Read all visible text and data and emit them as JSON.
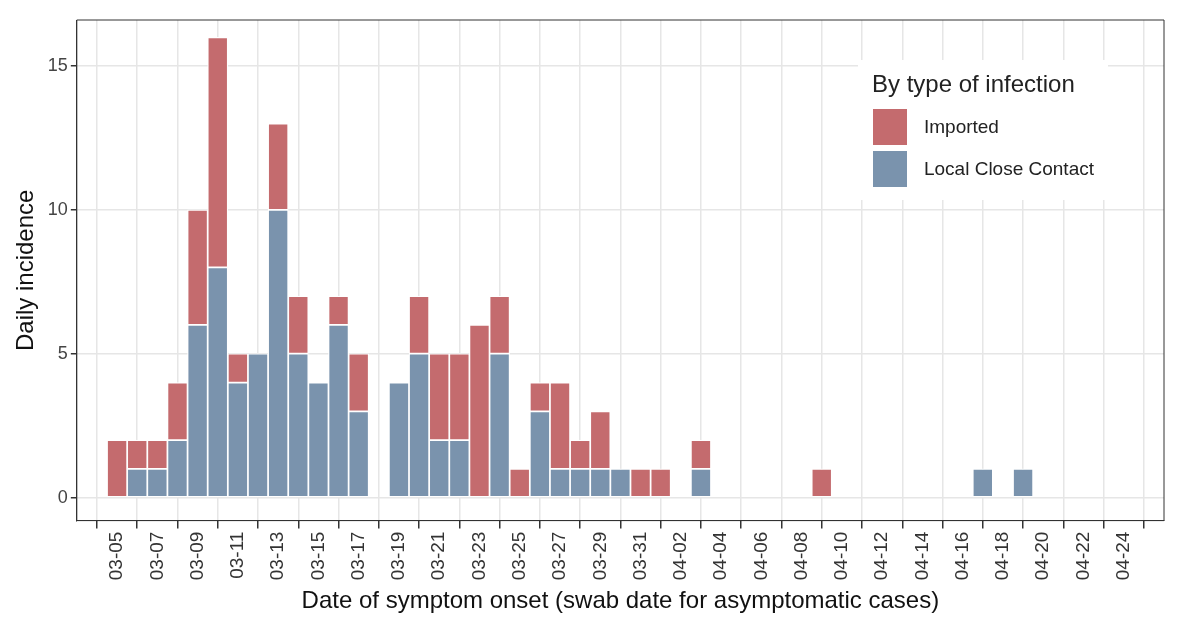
{
  "chart_data": {
    "type": "bar",
    "stacked": true,
    "xlabel": "Date of symptom onset (swab date for asymptomatic cases)",
    "ylabel": "Daily incidence",
    "legend_title": "By type of infection",
    "legend": "top right",
    "grid": true,
    "x": [
      "--03-05",
      "--03-06",
      "--03-07",
      "--03-08",
      "--03-09",
      "--03-10",
      "--03-11",
      "--03-12",
      "--03-13",
      "--03-14",
      "--03-15",
      "--03-16",
      "--03-17",
      "--03-19",
      "--03-20",
      "--03-21",
      "--03-22",
      "--03-23",
      "--03-24",
      "--03-25",
      "--03-26",
      "--03-27",
      "--03-28",
      "--03-29",
      "--03-30",
      "--03-31",
      "--04-01",
      "--04-03",
      "--04-09",
      "--04-17",
      "--04-19"
    ],
    "series": [
      {
        "name": "Local Close Contact",
        "color": "#7a93ad",
        "values": [
          null,
          1,
          1,
          2,
          6,
          8,
          4,
          5,
          10,
          5,
          4,
          6,
          3,
          4,
          5,
          2,
          2,
          null,
          5,
          null,
          3,
          1,
          1,
          1,
          1,
          null,
          null,
          1,
          null,
          1,
          1
        ]
      },
      {
        "name": "Imported",
        "color": "#c46b6e",
        "values": [
          2,
          1,
          1,
          2,
          4,
          8,
          1,
          null,
          3,
          2,
          null,
          1,
          2,
          null,
          2,
          3,
          3,
          6,
          2,
          1,
          1,
          3,
          1,
          2,
          null,
          1,
          1,
          1,
          1,
          null,
          null
        ]
      }
    ],
    "xlim": [
      "--03-03",
      "--04-26"
    ],
    "xticks": [
      {
        "value": "--03-05",
        "label": "03-05"
      },
      {
        "value": "--03-07",
        "label": "03-07"
      },
      {
        "value": "--03-09",
        "label": "03-09"
      },
      {
        "value": "--03-11",
        "label": "03-11"
      },
      {
        "value": "--03-13",
        "label": "03-13"
      },
      {
        "value": "--03-15",
        "label": "03-15"
      },
      {
        "value": "--03-17",
        "label": "03-17"
      },
      {
        "value": "--03-19",
        "label": "03-19"
      },
      {
        "value": "--03-21",
        "label": "03-21"
      },
      {
        "value": "--03-23",
        "label": "03-23"
      },
      {
        "value": "--03-25",
        "label": "03-25"
      },
      {
        "value": "--03-27",
        "label": "03-27"
      },
      {
        "value": "--03-29",
        "label": "03-29"
      },
      {
        "value": "--03-31",
        "label": "03-31"
      },
      {
        "value": "--04-02",
        "label": "04-02"
      },
      {
        "value": "--04-04",
        "label": "04-04"
      },
      {
        "value": "--04-06",
        "label": "04-06"
      },
      {
        "value": "--04-08",
        "label": "04-08"
      },
      {
        "value": "--04-10",
        "label": "04-10"
      },
      {
        "value": "--04-12",
        "label": "04-12"
      },
      {
        "value": "--04-14",
        "label": "04-14"
      },
      {
        "value": "--04-16",
        "label": "04-16"
      },
      {
        "value": "--04-18",
        "label": "04-18"
      },
      {
        "value": "--04-20",
        "label": "04-20"
      },
      {
        "value": "--04-22",
        "label": "04-22"
      },
      {
        "value": "--04-24",
        "label": "04-24"
      }
    ],
    "ylim": [
      -0.8,
      16.6
    ],
    "yticks": [
      0,
      5,
      10,
      15
    ]
  }
}
